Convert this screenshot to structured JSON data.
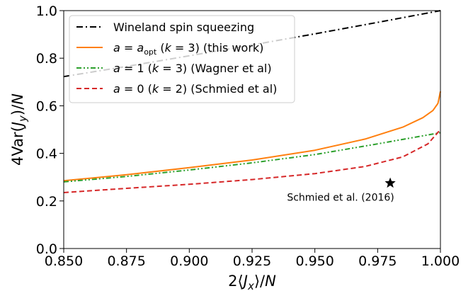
{
  "chart_data": {
    "type": "line",
    "title": "",
    "xlabel": "2⟨J_x⟩/N",
    "ylabel": "4Var(J_y)/N",
    "xlim": [
      0.85,
      1.0
    ],
    "ylim": [
      0.0,
      1.0
    ],
    "x_ticks": [
      0.85,
      0.875,
      0.9,
      0.925,
      0.95,
      0.975,
      1.0
    ],
    "x_tick_labels": [
      "0.850",
      "0.875",
      "0.900",
      "0.925",
      "0.950",
      "0.975",
      "1.000"
    ],
    "y_ticks": [
      0.0,
      0.2,
      0.4,
      0.6,
      0.8,
      1.0
    ],
    "y_tick_labels": [
      "0.0",
      "0.2",
      "0.4",
      "0.6",
      "0.8",
      "1.0"
    ],
    "grid": false,
    "legend_position": "top-left",
    "series": [
      {
        "name": "Wineland spin squeezing",
        "color": "#000000",
        "style": "dashdot",
        "x": [
          0.85,
          0.875,
          0.9,
          0.925,
          0.95,
          0.975,
          1.0
        ],
        "y": [
          0.7225,
          0.7656,
          0.81,
          0.8556,
          0.9025,
          0.9506,
          1.0
        ]
      },
      {
        "name": "a = a_opt (k = 3) (this work)",
        "color": "#ff7f0e",
        "style": "solid",
        "x": [
          0.85,
          0.875,
          0.9,
          0.925,
          0.95,
          0.97,
          0.985,
          0.993,
          0.997,
          0.999,
          1.0
        ],
        "y": [
          0.285,
          0.31,
          0.34,
          0.372,
          0.413,
          0.46,
          0.51,
          0.55,
          0.58,
          0.61,
          0.66
        ]
      },
      {
        "name": "a = 1 (k = 3) (Wagner et al)",
        "color": "#2ca02c",
        "style": "dashdotdot",
        "x": [
          0.85,
          0.875,
          0.9,
          0.925,
          0.95,
          0.975,
          1.0
        ],
        "y": [
          0.28,
          0.303,
          0.33,
          0.36,
          0.395,
          0.44,
          0.487
        ]
      },
      {
        "name": "a = 0 (k = 2) (Schmied et al)",
        "color": "#d62728",
        "style": "dashed",
        "x": [
          0.85,
          0.875,
          0.9,
          0.925,
          0.95,
          0.97,
          0.985,
          0.995,
          1.0
        ],
        "y": [
          0.235,
          0.253,
          0.27,
          0.29,
          0.315,
          0.345,
          0.385,
          0.44,
          0.5
        ]
      }
    ],
    "annotations": [
      {
        "label": "Schmied et al. (2016)",
        "x": 0.98,
        "y": 0.275,
        "marker": "star",
        "color": "#000000"
      }
    ]
  },
  "legend": {
    "items": [
      {
        "id": "wineland",
        "label_plain": "Wineland spin squeezing"
      },
      {
        "id": "aopt",
        "prefix": "a",
        "eq": " = ",
        "a2": "a",
        "sub": "opt",
        "mid": " (",
        "k": "k",
        "rest": " = 3) (this work)"
      },
      {
        "id": "a1",
        "prefix": "a",
        "eq": " = 1 (",
        "k": "k",
        "rest": " = 3) (Wagner et al)"
      },
      {
        "id": "a0",
        "prefix": "a",
        "eq": " = 0 (",
        "k": "k",
        "rest": " = 2) (Schmied et al)"
      }
    ]
  },
  "axis_text": {
    "y_pre": "4Var(",
    "y_J": "J",
    "y_sub": "y",
    "y_post": ")/",
    "y_N": "N",
    "x_pre": "2",
    "x_J": "J",
    "x_sub": "x",
    "x_post": "/",
    "x_N": "N",
    "lang": "⟨",
    "rang": "⟩"
  }
}
